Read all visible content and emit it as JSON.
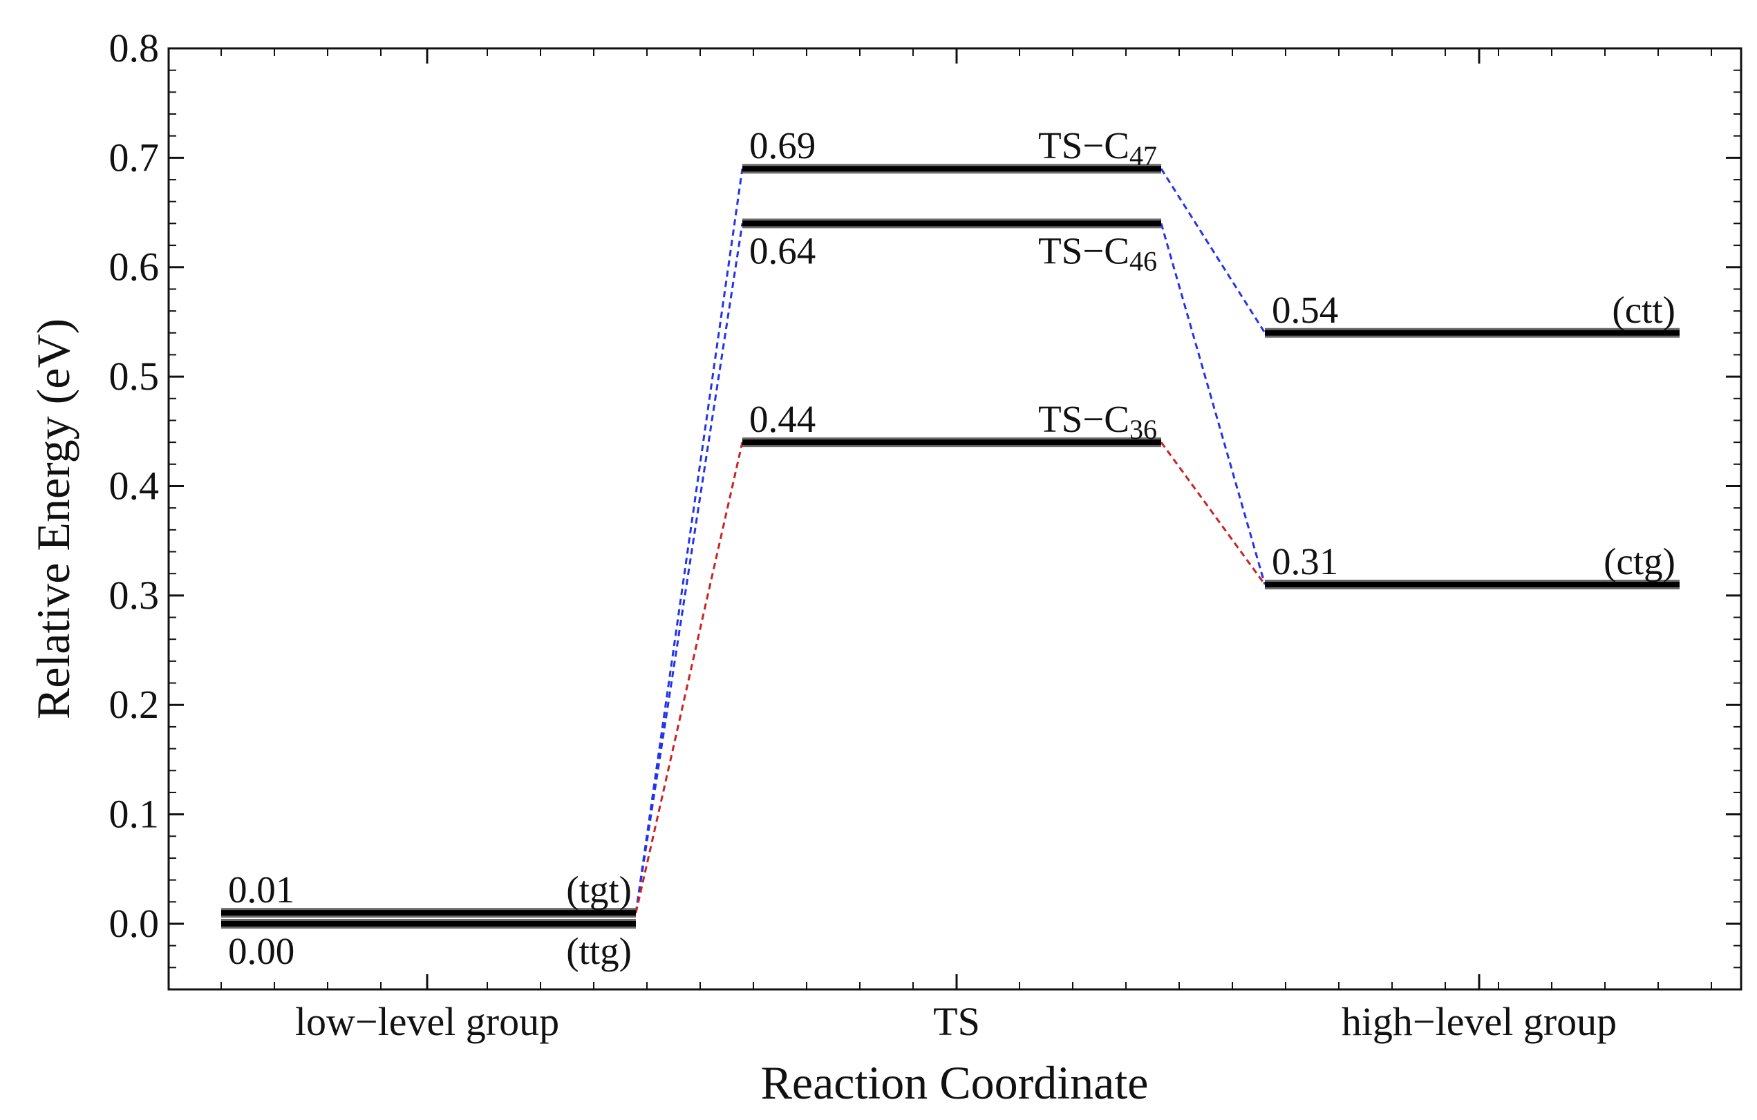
{
  "chart_data": {
    "type": "energy-level-diagram",
    "xlabel": "Reaction Coordinate",
    "ylabel": "Relative Energy (eV)",
    "ylim": [
      -0.06,
      0.8
    ],
    "yticks": [
      "0.0",
      "0.1",
      "0.2",
      "0.3",
      "0.4",
      "0.5",
      "0.6",
      "0.7",
      "0.8"
    ],
    "categories": [
      "low−level group",
      "TS",
      "high−level group"
    ],
    "levels": [
      {
        "id": "ttg",
        "group": 0,
        "energy": 0.0,
        "value_label": "0.00",
        "name": "(ttg)",
        "name_sub": "",
        "label_pos": "below"
      },
      {
        "id": "tgt",
        "group": 0,
        "energy": 0.01,
        "value_label": "0.01",
        "name": "(tgt)",
        "name_sub": "",
        "label_pos": "above"
      },
      {
        "id": "ts47",
        "group": 1,
        "energy": 0.69,
        "value_label": "0.69",
        "name": "TS−C",
        "name_sub": "47",
        "label_pos": "above"
      },
      {
        "id": "ts46",
        "group": 1,
        "energy": 0.64,
        "value_label": "0.64",
        "name": "TS−C",
        "name_sub": "46",
        "label_pos": "below"
      },
      {
        "id": "ts36",
        "group": 1,
        "energy": 0.44,
        "value_label": "0.44",
        "name": "TS−C",
        "name_sub": "36",
        "label_pos": "above"
      },
      {
        "id": "ctt",
        "group": 2,
        "energy": 0.54,
        "value_label": "0.54",
        "name": "(ctt)",
        "name_sub": "",
        "label_pos": "above"
      },
      {
        "id": "ctg",
        "group": 2,
        "energy": 0.31,
        "value_label": "0.31",
        "name": "(ctg)",
        "name_sub": "",
        "label_pos": "above"
      }
    ],
    "connections": [
      {
        "from": "tgt",
        "to": "ts47",
        "color": "#2233ee"
      },
      {
        "from": "tgt",
        "to": "ts46",
        "color": "#2233ee"
      },
      {
        "from": "tgt",
        "to": "ts36",
        "color": "#cc2222"
      },
      {
        "from": "ts47",
        "to": "ctt",
        "color": "#2233ee"
      },
      {
        "from": "ts46",
        "to": "ctg",
        "color": "#2233ee"
      },
      {
        "from": "ts36",
        "to": "ctg",
        "color": "#cc2222"
      }
    ]
  }
}
